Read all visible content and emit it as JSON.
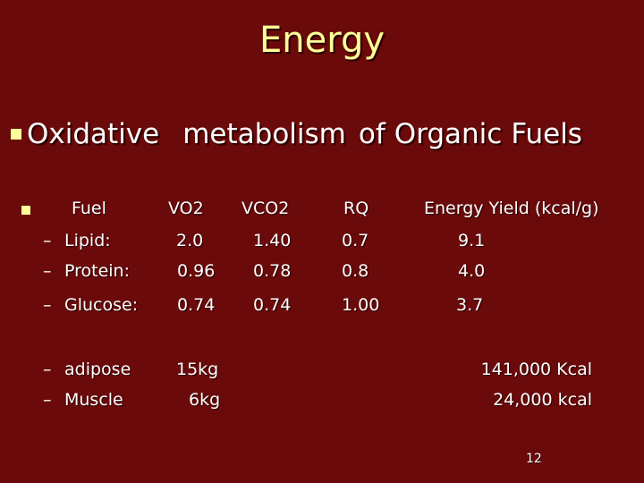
{
  "title": "Energy",
  "heading": {
    "w1": "Oxidative",
    "w2": "metabolism",
    "w3": "of",
    "w4": "Organic",
    "w5": "Fuels"
  },
  "table": {
    "headers": {
      "fuel": "Fuel",
      "vo2": "VO2",
      "vco2": "VCO2",
      "rq": "RQ",
      "yield": "Energy Yield (kcal/g)"
    },
    "rows": [
      {
        "fuel": "Lipid:",
        "vo2": "2.0",
        "vco2": "1.40",
        "rq": "0.7",
        "yield": "9.1"
      },
      {
        "fuel": "Protein:",
        "vo2": "0.96",
        "vco2": "0.78",
        "rq": "0.8",
        "yield": "4.0"
      },
      {
        "fuel": "Glucose:",
        "vo2": "0.74",
        "vco2": "0.74",
        "rq": "1.00",
        "yield": "3.7"
      }
    ]
  },
  "stores": [
    {
      "label": "adipose",
      "mass": "15kg",
      "energy": "141,000 Kcal"
    },
    {
      "label": "Muscle",
      "mass": "6kg",
      "energy": "24,000 kcal"
    }
  ],
  "dash": "–",
  "slide_number": "12",
  "colors": {
    "background": "#6b0a0a",
    "title": "#ffff99",
    "bullet": "#ffff99",
    "text": "#ffffff"
  }
}
